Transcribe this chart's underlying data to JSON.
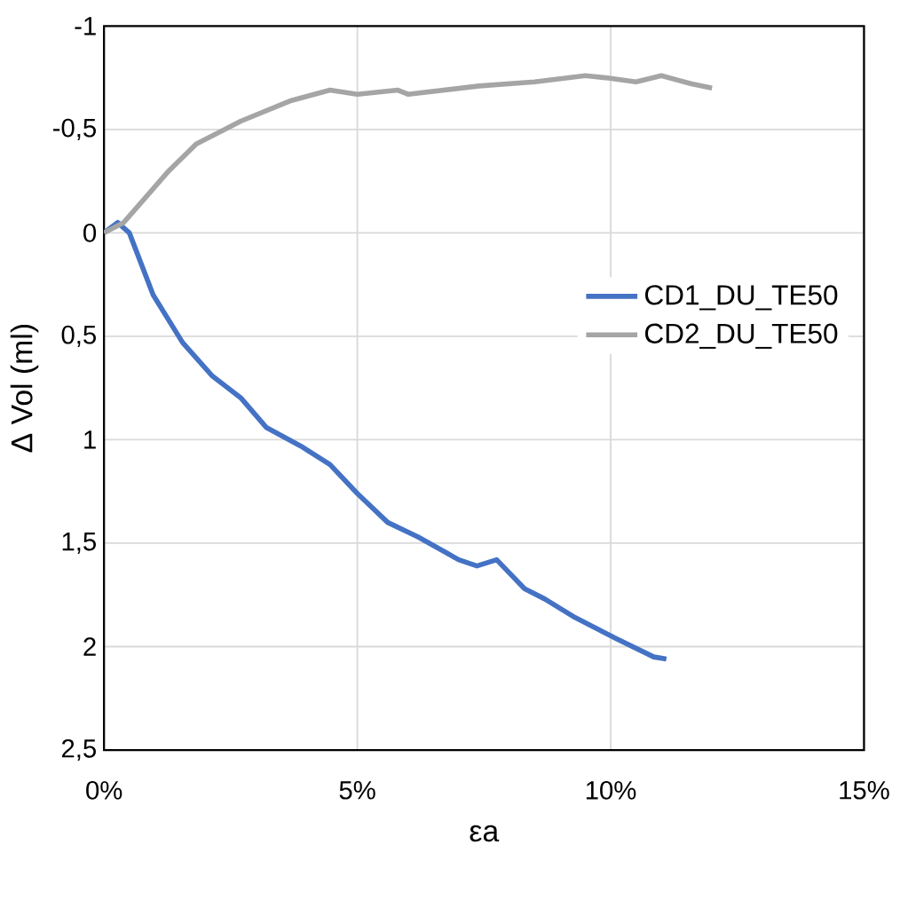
{
  "chart_data": {
    "type": "line",
    "xlabel": "εa",
    "ylabel": "Δ Vol (ml)",
    "xlim": [
      0,
      15
    ],
    "ylim": [
      2.5,
      -1
    ],
    "xticks": [
      {
        "value": 0,
        "label": "0%"
      },
      {
        "value": 5,
        "label": "5%"
      },
      {
        "value": 10,
        "label": "10%"
      },
      {
        "value": 15,
        "label": "15%"
      }
    ],
    "yticks": [
      {
        "value": -1,
        "label": "-1"
      },
      {
        "value": -0.5,
        "label": "-0,5"
      },
      {
        "value": 0,
        "label": "0"
      },
      {
        "value": 0.5,
        "label": "0,5"
      },
      {
        "value": 1,
        "label": "1"
      },
      {
        "value": 1.5,
        "label": "1,5"
      },
      {
        "value": 2,
        "label": "2"
      },
      {
        "value": 2.5,
        "label": "2,5"
      }
    ],
    "grid": true,
    "legend": "right",
    "marker": "none",
    "line_style": "solid",
    "series": [
      {
        "name": "CD1_DU_TE50",
        "color": "#4472c4",
        "x": [
          0,
          0.27,
          0.5,
          0.97,
          1.55,
          2.13,
          2.71,
          3.2,
          3.88,
          4.46,
          5.0,
          5.6,
          6.2,
          7.0,
          7.36,
          7.75,
          8.3,
          8.7,
          9.3,
          9.7,
          10.1,
          10.85,
          11.1
        ],
        "values": [
          0,
          -0.05,
          0,
          0.3,
          0.53,
          0.69,
          0.8,
          0.94,
          1.03,
          1.12,
          1.26,
          1.4,
          1.47,
          1.58,
          1.61,
          1.58,
          1.72,
          1.77,
          1.86,
          1.91,
          1.96,
          2.05,
          2.06
        ]
      },
      {
        "name": "CD2_DU_TE50",
        "color": "#a5a5a5",
        "x": [
          0,
          0.39,
          0.78,
          1.28,
          1.82,
          2.7,
          3.7,
          4.46,
          5.0,
          5.8,
          6.0,
          7.4,
          8.5,
          9.5,
          9.9,
          10.5,
          11.0,
          11.6,
          12.0
        ],
        "values": [
          0,
          -0.05,
          -0.16,
          -0.3,
          -0.43,
          -0.54,
          -0.64,
          -0.69,
          -0.67,
          -0.69,
          -0.67,
          -0.71,
          -0.73,
          -0.76,
          -0.75,
          -0.73,
          -0.76,
          -0.72,
          -0.7
        ]
      }
    ]
  }
}
